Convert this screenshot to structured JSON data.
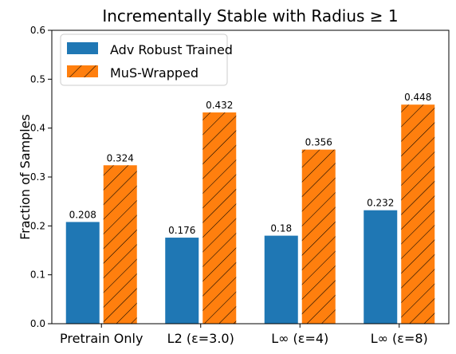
{
  "chart_data": {
    "type": "bar",
    "title": "Incrementally Stable with Radius ≥ 1",
    "xlabel": "",
    "ylabel": "Fraction of Samples",
    "ylim": [
      0,
      0.6
    ],
    "yticks": [
      "0.0",
      "0.1",
      "0.2",
      "0.3",
      "0.4",
      "0.5",
      "0.6"
    ],
    "categories": [
      "Pretrain Only",
      "L2 (ε=3.0)",
      "L∞ (ε=4)",
      "L∞ (ε=8)"
    ],
    "series": [
      {
        "name": "Adv Robust Trained",
        "values": [
          0.208,
          0.176,
          0.18,
          0.232
        ],
        "labels": [
          "0.208",
          "0.176",
          "0.18",
          "0.232"
        ],
        "color": "#1f77b4",
        "hatch": false
      },
      {
        "name": "MuS-Wrapped",
        "values": [
          0.324,
          0.432,
          0.356,
          0.448
        ],
        "labels": [
          "0.324",
          "0.432",
          "0.356",
          "0.448"
        ],
        "color": "#ff7f0e",
        "hatch": true
      }
    ],
    "legend": "top-left",
    "grid": false
  }
}
